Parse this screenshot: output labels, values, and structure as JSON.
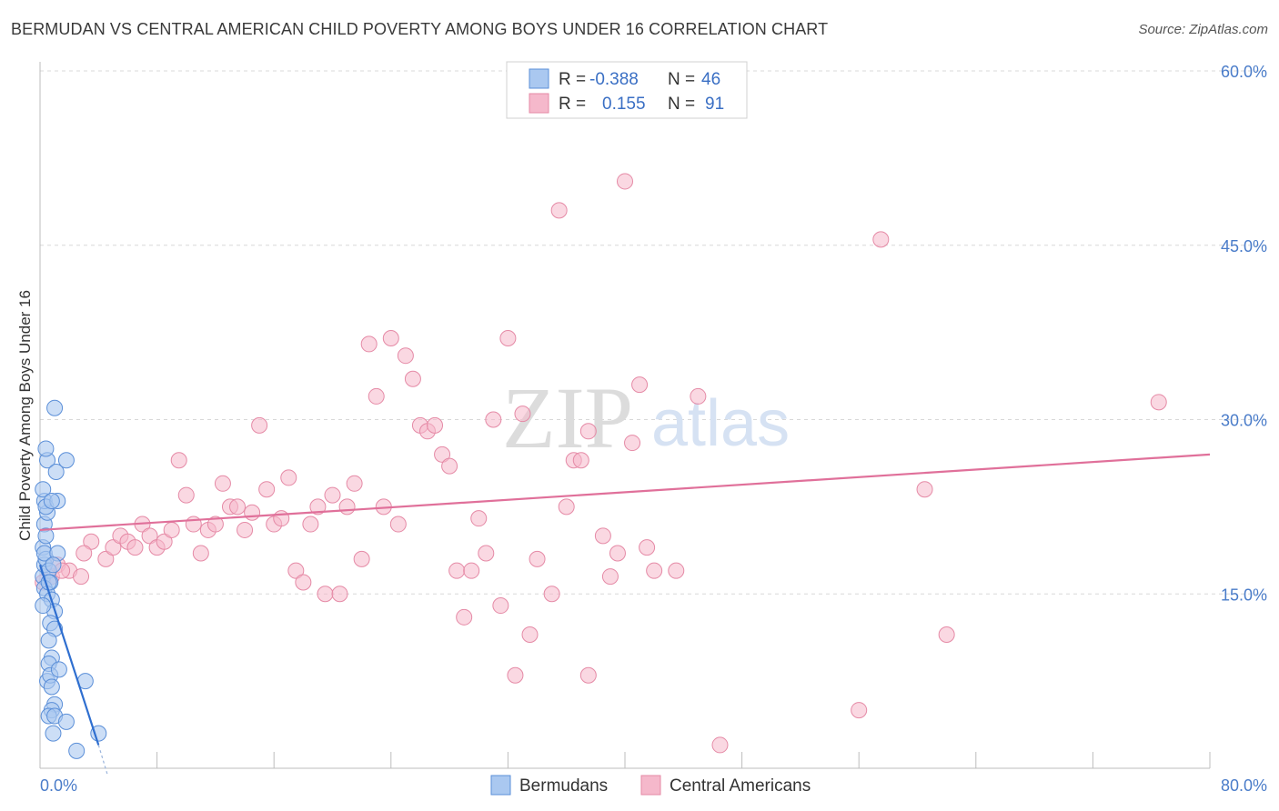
{
  "title": "BERMUDAN VS CENTRAL AMERICAN CHILD POVERTY AMONG BOYS UNDER 16 CORRELATION CHART",
  "source": "Source: ZipAtlas.com",
  "watermark": {
    "zip": "ZIP",
    "atlas": "atlas"
  },
  "colors": {
    "bermudans_fill": "#aac8f0",
    "bermudans_stroke": "#5b8fd8",
    "bermudans_line": "#2f6fd0",
    "central_fill": "#f5b8cb",
    "central_stroke": "#e58aa6",
    "central_line": "#e0709a",
    "grid": "#d8d8d8",
    "axis_label": "#4a7cc9"
  },
  "legend_box": {
    "rows": [
      {
        "r_label": "R =",
        "r_value": "-0.388",
        "n_label": "N =",
        "n_value": "46"
      },
      {
        "r_label": "R =",
        "r_value": "0.155",
        "n_label": "N =",
        "n_value": "91"
      }
    ]
  },
  "bottom_legend": [
    "Bermudans",
    "Central Americans"
  ],
  "chart_data": {
    "type": "scatter",
    "title": "BERMUDAN VS CENTRAL AMERICAN CHILD POVERTY AMONG BOYS UNDER 16 CORRELATION CHART",
    "xlabel": "",
    "ylabel": "Child Poverty Among Boys Under 16",
    "xlim": [
      0,
      80
    ],
    "ylim": [
      0,
      60
    ],
    "x_tick_labels": [
      "0.0%",
      "80.0%"
    ],
    "y_tick_values": [
      15,
      30,
      45,
      60
    ],
    "y_tick_labels": [
      "15.0%",
      "30.0%",
      "45.0%",
      "60.0%"
    ],
    "grid": "horizontal dashed",
    "legend_position": "top-center",
    "series": [
      {
        "name": "Bermudans",
        "r": -0.388,
        "n": 46,
        "trend": {
          "x": [
            0.0,
            4.0
          ],
          "y": [
            17.5,
            2.0
          ],
          "dashed_extension_to": [
            4.6,
            -0.5
          ]
        },
        "points": [
          [
            0.2,
            16.5
          ],
          [
            0.3,
            17.5
          ],
          [
            0.2,
            19.0
          ],
          [
            0.4,
            18.0
          ],
          [
            0.3,
            21.0
          ],
          [
            0.5,
            22.0
          ],
          [
            0.3,
            23.0
          ],
          [
            0.4,
            22.5
          ],
          [
            0.2,
            24.0
          ],
          [
            0.5,
            26.5
          ],
          [
            0.4,
            27.5
          ],
          [
            1.0,
            31.0
          ],
          [
            1.1,
            25.5
          ],
          [
            1.8,
            26.5
          ],
          [
            1.2,
            23.0
          ],
          [
            0.8,
            23.0
          ],
          [
            0.3,
            18.5
          ],
          [
            0.6,
            17.0
          ],
          [
            0.7,
            16.0
          ],
          [
            0.3,
            15.5
          ],
          [
            0.5,
            15.0
          ],
          [
            0.8,
            14.5
          ],
          [
            1.0,
            13.5
          ],
          [
            0.7,
            12.5
          ],
          [
            1.0,
            12.0
          ],
          [
            0.6,
            11.0
          ],
          [
            0.8,
            9.5
          ],
          [
            0.6,
            9.0
          ],
          [
            0.5,
            7.5
          ],
          [
            0.7,
            8.0
          ],
          [
            1.3,
            8.5
          ],
          [
            0.8,
            7.0
          ],
          [
            3.1,
            7.5
          ],
          [
            1.0,
            5.5
          ],
          [
            0.8,
            5.0
          ],
          [
            0.6,
            4.5
          ],
          [
            1.0,
            4.5
          ],
          [
            1.8,
            4.0
          ],
          [
            0.9,
            3.0
          ],
          [
            4.0,
            3.0
          ],
          [
            2.5,
            1.5
          ],
          [
            1.2,
            18.5
          ],
          [
            0.4,
            20.0
          ],
          [
            0.9,
            17.5
          ],
          [
            0.2,
            14.0
          ],
          [
            0.6,
            16.0
          ]
        ]
      },
      {
        "name": "Central Americans",
        "r": 0.155,
        "n": 91,
        "trend": {
          "x": [
            0,
            80
          ],
          "y": [
            20.5,
            27.0
          ]
        },
        "points": [
          [
            0.2,
            16.0
          ],
          [
            0.8,
            16.5
          ],
          [
            1.2,
            17.5
          ],
          [
            2.0,
            17.0
          ],
          [
            2.8,
            16.5
          ],
          [
            3.5,
            19.5
          ],
          [
            4.5,
            18.0
          ],
          [
            5.0,
            19.0
          ],
          [
            5.5,
            20.0
          ],
          [
            6.0,
            19.5
          ],
          [
            6.5,
            19.0
          ],
          [
            7.0,
            21.0
          ],
          [
            7.5,
            20.0
          ],
          [
            8.0,
            19.0
          ],
          [
            8.5,
            19.5
          ],
          [
            9.0,
            20.5
          ],
          [
            9.5,
            26.5
          ],
          [
            10.0,
            23.5
          ],
          [
            10.5,
            21.0
          ],
          [
            11.0,
            18.5
          ],
          [
            11.5,
            20.5
          ],
          [
            12.0,
            21.0
          ],
          [
            12.5,
            24.5
          ],
          [
            13.0,
            22.5
          ],
          [
            13.5,
            22.5
          ],
          [
            14.0,
            20.5
          ],
          [
            14.5,
            22.0
          ],
          [
            15.0,
            29.5
          ],
          [
            15.5,
            24.0
          ],
          [
            16.0,
            21.0
          ],
          [
            16.5,
            21.5
          ],
          [
            17.0,
            25.0
          ],
          [
            17.5,
            17.0
          ],
          [
            18.0,
            16.0
          ],
          [
            18.5,
            21.0
          ],
          [
            19.0,
            22.5
          ],
          [
            19.5,
            15.0
          ],
          [
            20.0,
            23.5
          ],
          [
            20.5,
            15.0
          ],
          [
            21.0,
            22.5
          ],
          [
            21.5,
            24.5
          ],
          [
            22.0,
            18.0
          ],
          [
            22.5,
            36.5
          ],
          [
            23.0,
            32.0
          ],
          [
            23.5,
            22.5
          ],
          [
            24.0,
            37.0
          ],
          [
            24.5,
            21.0
          ],
          [
            25.0,
            35.5
          ],
          [
            25.5,
            33.5
          ],
          [
            26.0,
            29.5
          ],
          [
            26.5,
            29.0
          ],
          [
            27.0,
            29.5
          ],
          [
            27.5,
            27.0
          ],
          [
            28.0,
            26.0
          ],
          [
            28.5,
            17.0
          ],
          [
            29.0,
            13.0
          ],
          [
            29.5,
            17.0
          ],
          [
            30.0,
            21.5
          ],
          [
            30.5,
            18.5
          ],
          [
            31.0,
            30.0
          ],
          [
            31.5,
            14.0
          ],
          [
            32.0,
            37.0
          ],
          [
            32.5,
            8.0
          ],
          [
            33.0,
            30.5
          ],
          [
            33.5,
            11.5
          ],
          [
            34.0,
            18.0
          ],
          [
            35.0,
            15.0
          ],
          [
            35.5,
            48.0
          ],
          [
            36.0,
            22.5
          ],
          [
            36.5,
            26.5
          ],
          [
            37.0,
            26.5
          ],
          [
            37.5,
            29.0
          ],
          [
            37.5,
            8.0
          ],
          [
            38.5,
            20.0
          ],
          [
            39.0,
            16.5
          ],
          [
            39.5,
            18.5
          ],
          [
            40.0,
            50.5
          ],
          [
            40.5,
            28.0
          ],
          [
            41.0,
            33.0
          ],
          [
            41.5,
            19.0
          ],
          [
            42.0,
            17.0
          ],
          [
            43.5,
            17.0
          ],
          [
            45.0,
            32.0
          ],
          [
            46.5,
            2.0
          ],
          [
            56.0,
            5.0
          ],
          [
            57.5,
            45.5
          ],
          [
            60.5,
            24.0
          ],
          [
            62.0,
            11.5
          ],
          [
            76.5,
            31.5
          ],
          [
            3.0,
            18.5
          ],
          [
            1.5,
            17.0
          ]
        ]
      }
    ]
  }
}
